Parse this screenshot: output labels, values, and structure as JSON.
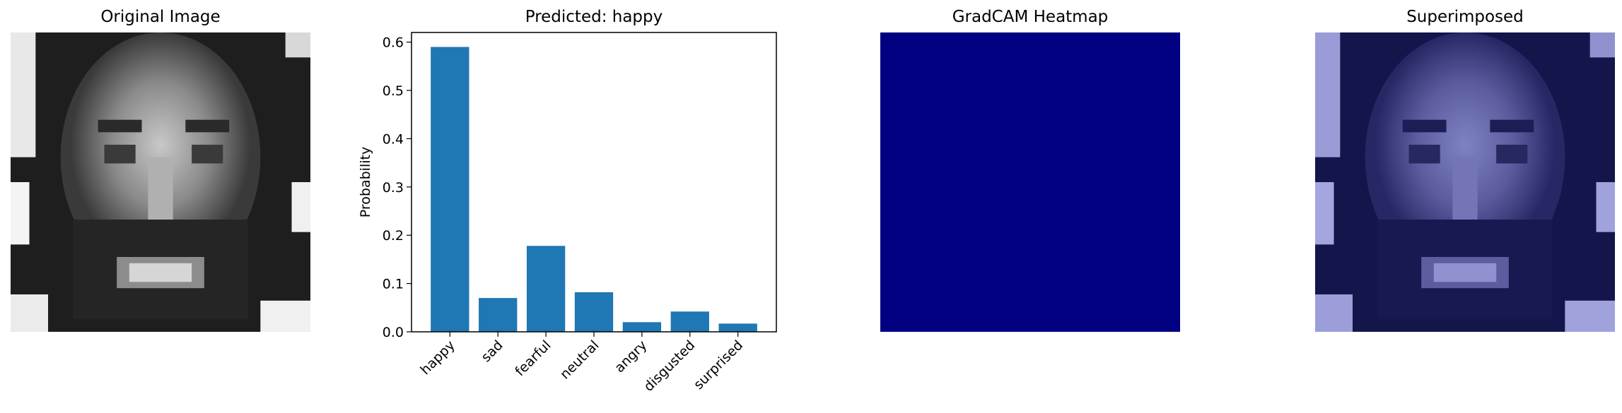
{
  "panels": {
    "original_title": "Original Image",
    "chart_title": "Predicted: happy",
    "heatmap_title": "GradCAM Heatmap",
    "superimposed_title": "Superimposed"
  },
  "colors": {
    "bar": "#1f77b4",
    "heatmap": "#000080",
    "overlay": "#1a1a8c"
  },
  "chart_data": {
    "type": "bar",
    "title": "Predicted: happy",
    "xlabel": "",
    "ylabel": "Probability",
    "categories": [
      "happy",
      "sad",
      "fearful",
      "neutral",
      "angry",
      "disgusted",
      "surprised"
    ],
    "values": [
      0.59,
      0.07,
      0.178,
      0.082,
      0.02,
      0.042,
      0.017
    ],
    "ylim": [
      0,
      0.62
    ],
    "yticks": [
      0.0,
      0.1,
      0.2,
      0.3,
      0.4,
      0.5,
      0.6
    ],
    "ytick_labels": [
      "0.0",
      "0.1",
      "0.2",
      "0.3",
      "0.4",
      "0.5",
      "0.6"
    ],
    "grid": false,
    "legend": "none"
  }
}
